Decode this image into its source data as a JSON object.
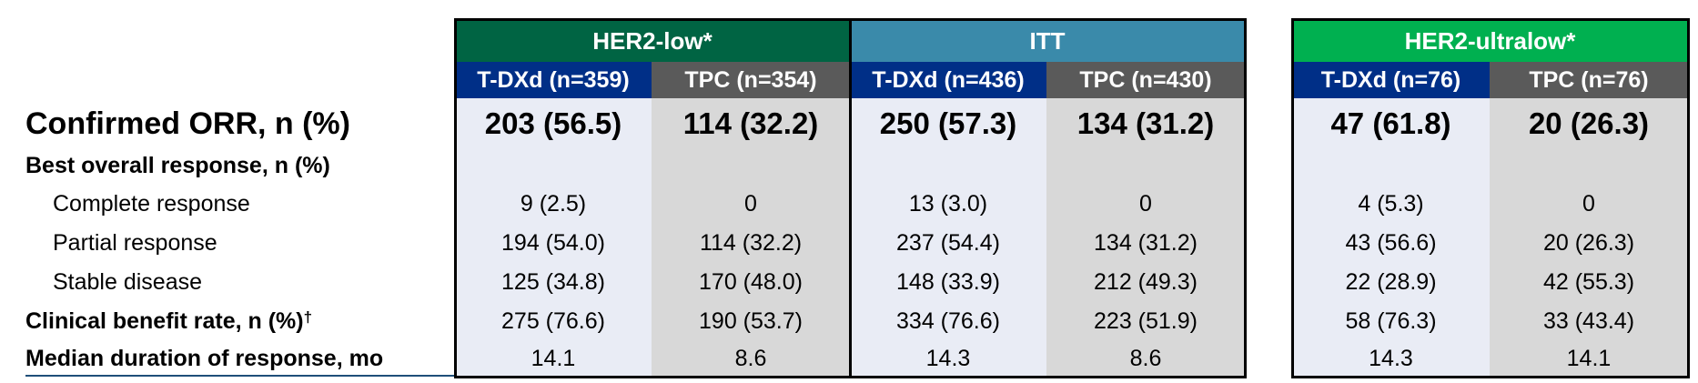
{
  "colors": {
    "her2_low_header": "#006443",
    "itt_header": "#3a8aaa",
    "her2_ultralow_header": "#00b050",
    "tdxd_subheader": "#002f87",
    "tpc_subheader": "#5a5a5a",
    "tdxd_column_bg": "#e9ecf5",
    "tpc_column_bg": "#d8d8d8"
  },
  "groups": [
    {
      "label": "HER2-low*",
      "columns": [
        "T-DXd (n=359)",
        "TPC (n=354)"
      ]
    },
    {
      "label": "ITT",
      "columns": [
        "T-DXd (n=436)",
        "TPC (n=430)"
      ]
    },
    {
      "label": "HER2-ultralow*",
      "columns": [
        "T-DXd (n=76)",
        "TPC (n=76)"
      ]
    }
  ],
  "rows": [
    {
      "label": "Confirmed ORR, n (%)",
      "values": [
        "203 (56.5)",
        "114 (32.2)",
        "250 (57.3)",
        "134 (31.2)",
        "47 (61.8)",
        "20 (26.3)"
      ]
    },
    {
      "label": "Best overall response, n (%)",
      "values": [
        "",
        "",
        "",
        "",
        "",
        ""
      ]
    },
    {
      "label": "Complete response",
      "values": [
        "9 (2.5)",
        "0",
        "13 (3.0)",
        "0",
        "4 (5.3)",
        "0"
      ]
    },
    {
      "label": "Partial response",
      "values": [
        "194 (54.0)",
        "114 (32.2)",
        "237 (54.4)",
        "134 (31.2)",
        "43 (56.6)",
        "20 (26.3)"
      ]
    },
    {
      "label": "Stable disease",
      "values": [
        "125 (34.8)",
        "170 (48.0)",
        "148 (33.9)",
        "212 (49.3)",
        "22 (28.9)",
        "42 (55.3)"
      ]
    },
    {
      "label": "Clinical benefit rate, n (%)",
      "sup": "†",
      "values": [
        "275 (76.6)",
        "190 (53.7)",
        "334 (76.6)",
        "223 (51.9)",
        "58 (76.3)",
        "33 (43.4)"
      ]
    },
    {
      "label": "Median duration of response, mo",
      "values": [
        "14.1",
        "8.6",
        "14.3",
        "8.6",
        "14.3",
        "14.1"
      ]
    }
  ]
}
